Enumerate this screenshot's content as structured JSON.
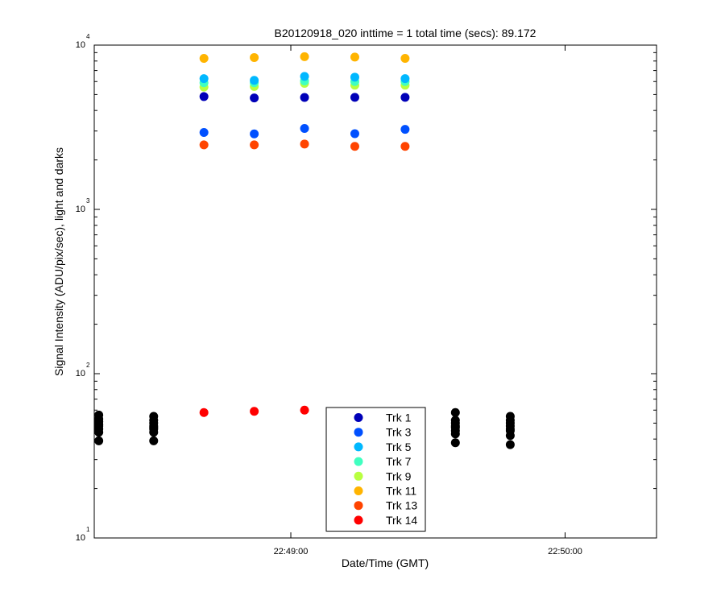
{
  "chart_data": {
    "type": "scatter",
    "title": "B20120918_020 inttime = 1 total time (secs): 89.172",
    "xlabel": "Date/Time (GMT)",
    "ylabel": "Signal Intensity (ADU/pix/sec), light and darks",
    "y_scale": "log",
    "ylim": [
      10,
      10000
    ],
    "y_ticks": [
      {
        "value": 10,
        "base": "10",
        "exp": "1"
      },
      {
        "value": 100,
        "base": "10",
        "exp": "2"
      },
      {
        "value": 1000,
        "base": "10",
        "exp": "3"
      },
      {
        "value": 10000,
        "base": "10",
        "exp": "4"
      }
    ],
    "xlim": [
      "22:48:17",
      "22:50:20"
    ],
    "x_ticks": [
      "22:49:00",
      "22:50:00"
    ],
    "grid": false,
    "legend_position": "bottom-center",
    "series": [
      {
        "name": "Trk 1",
        "color": "#0000b8",
        "x": [
          "22:48:41",
          "22:48:52",
          "22:49:03",
          "22:49:14",
          "22:49:25"
        ],
        "y": [
          4860,
          4770,
          4800,
          4810,
          4810
        ]
      },
      {
        "name": "Trk 3",
        "color": "#0050ff",
        "x": [
          "22:48:41",
          "22:48:52",
          "22:49:03",
          "22:49:14",
          "22:49:25"
        ],
        "y": [
          2940,
          2880,
          3110,
          2890,
          3070
        ]
      },
      {
        "name": "Trk 5",
        "color": "#00b8ff",
        "x": [
          "22:48:41",
          "22:48:52",
          "22:49:03",
          "22:49:14",
          "22:49:25"
        ],
        "y": [
          6250,
          6100,
          6450,
          6380,
          6250
        ]
      },
      {
        "name": "Trk 7",
        "color": "#40ffc0",
        "x": [
          "22:48:41",
          "22:48:52",
          "22:49:03",
          "22:49:14",
          "22:49:25"
        ],
        "y": [
          5900,
          5900,
          6050,
          6000,
          6000
        ]
      },
      {
        "name": "Trk 9",
        "color": "#b8ff40",
        "x": [
          "22:48:41",
          "22:48:52",
          "22:49:03",
          "22:49:14",
          "22:49:25"
        ],
        "y": [
          5550,
          5600,
          5850,
          5700,
          5700
        ]
      },
      {
        "name": "Trk 11",
        "color": "#ffb400",
        "x": [
          "22:48:41",
          "22:48:52",
          "22:49:03",
          "22:49:14",
          "22:49:25"
        ],
        "y": [
          8300,
          8400,
          8500,
          8450,
          8300
        ]
      },
      {
        "name": "Trk 13",
        "color": "#ff4400",
        "x": [
          "22:48:41",
          "22:48:52",
          "22:49:03",
          "22:49:14",
          "22:49:25"
        ],
        "y": [
          2470,
          2470,
          2500,
          2420,
          2420
        ]
      },
      {
        "name": "Trk 14",
        "color": "#ff0000",
        "x": [
          "22:48:41",
          "22:48:52",
          "22:49:03",
          "22:49:14",
          "22:49:25"
        ],
        "y": [
          58,
          59,
          60,
          58,
          58
        ]
      },
      {
        "color": "#000000",
        "x": [
          "22:48:18",
          "22:48:18",
          "22:48:18",
          "22:48:18",
          "22:48:18",
          "22:48:18",
          "22:48:18",
          "22:48:18",
          "22:48:30",
          "22:48:30",
          "22:48:30",
          "22:48:30",
          "22:48:30",
          "22:48:30",
          "22:48:30",
          "22:48:30",
          "22:49:36",
          "22:49:36",
          "22:49:36",
          "22:49:36",
          "22:49:36",
          "22:49:36",
          "22:49:36",
          "22:49:36",
          "22:49:48",
          "22:49:48",
          "22:49:48",
          "22:49:48",
          "22:49:48",
          "22:49:48",
          "22:49:48",
          "22:49:48"
        ],
        "y": [
          56,
          53,
          51,
          49,
          48,
          46,
          44,
          39,
          55,
          52,
          50,
          48,
          47,
          46,
          44,
          39,
          58,
          52,
          50,
          48,
          47,
          45,
          43,
          38,
          55,
          52,
          50,
          48,
          46,
          45,
          42,
          37
        ]
      }
    ]
  }
}
